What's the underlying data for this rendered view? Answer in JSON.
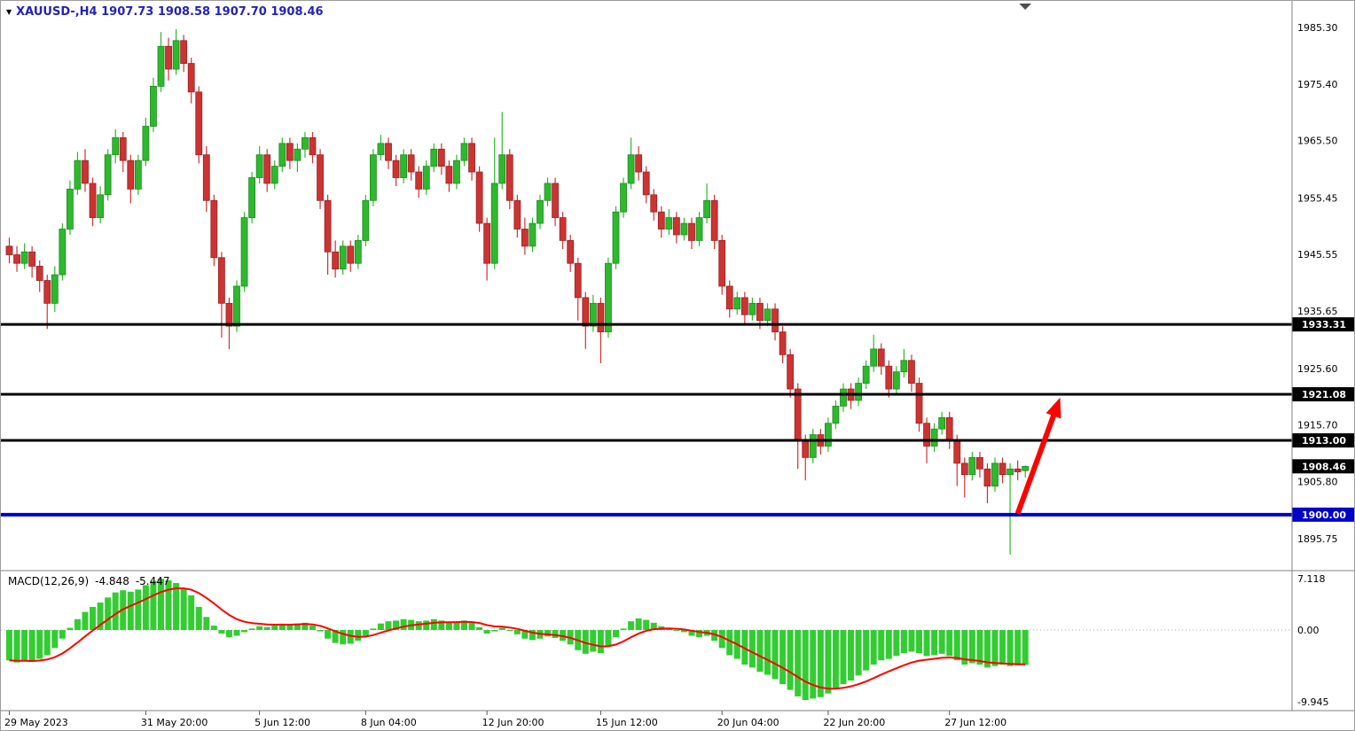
{
  "header": {
    "title": "XAUUSD-,H4 1907.73 1908.58 1907.70 1908.46",
    "symbol": "XAUUSD-",
    "timeframe": "H4",
    "ohlc": {
      "open": "1907.73",
      "high": "1908.58",
      "low": "1907.70",
      "close": "1908.46"
    }
  },
  "macd_header": {
    "label": "MACD(12,26,9)",
    "macd_value": "-4.848",
    "signal_value": "-5.447"
  },
  "colors": {
    "title_text": "#2222bb",
    "candle_up": "#2eb82e",
    "candle_up_border": "#1e8a1e",
    "candle_down": "#cc3333",
    "candle_down_border": "#992222",
    "sr_line_black": "#000000",
    "sr_line_blue": "#0000c8",
    "arrow_red": "#ff0000",
    "macd_hist": "#33cc33",
    "macd_signal": "#ff0000",
    "axis_text": "#000000",
    "separator": "#808080",
    "tag_text": "#ffffff"
  },
  "chart_data": [
    {
      "type": "candlestick",
      "title": "XAUUSD H4",
      "ylim": [
        1890.2,
        1989.95
      ],
      "y_ticks": [
        1985.3,
        1975.4,
        1965.5,
        1955.45,
        1945.55,
        1935.65,
        1925.6,
        1915.7,
        1905.8,
        1895.75
      ],
      "x_ticks": [
        {
          "index": 0,
          "label": "29 May 2023"
        },
        {
          "index": 18,
          "label": "31 May 20:00"
        },
        {
          "index": 33,
          "label": "5 Jun 12:00"
        },
        {
          "index": 47,
          "label": "8 Jun 04:00"
        },
        {
          "index": 63,
          "label": "12 Jun 20:00"
        },
        {
          "index": 78,
          "label": "15 Jun 12:00"
        },
        {
          "index": 94,
          "label": "20 Jun 04:00"
        },
        {
          "index": 108,
          "label": "22 Jun 20:00"
        },
        {
          "index": 124,
          "label": "27 Jun 12:00"
        }
      ],
      "price_lines": [
        {
          "value": 1933.31,
          "label": "1933.31",
          "color": "#000000",
          "width": 3
        },
        {
          "value": 1921.08,
          "label": "1921.08",
          "color": "#000000",
          "width": 3
        },
        {
          "value": 1913.0,
          "label": "1913.00",
          "color": "#000000",
          "width": 3
        },
        {
          "value": 1900.0,
          "label": "1900.00",
          "color": "#0000c8",
          "width": 4
        }
      ],
      "current_price": {
        "value": 1908.46,
        "label": "1908.46",
        "tag_color": "#000000"
      },
      "arrow": {
        "from": {
          "index": 133,
          "price": 1900.2
        },
        "to": {
          "index": 138.6,
          "price": 1920.5
        },
        "color": "#ff0000"
      },
      "candles": [
        [
          1947,
          1948.5,
          1944,
          1945.5
        ],
        [
          1945.5,
          1947,
          1942.5,
          1944
        ],
        [
          1944,
          1947.5,
          1943,
          1946
        ],
        [
          1946,
          1947,
          1941.5,
          1943.5
        ],
        [
          1943.5,
          1944.5,
          1939,
          1941
        ],
        [
          1941,
          1942,
          1932.5,
          1937
        ],
        [
          1937,
          1943.5,
          1935.5,
          1942
        ],
        [
          1942,
          1951,
          1941,
          1950
        ],
        [
          1950,
          1958.5,
          1949,
          1957
        ],
        [
          1957,
          1963.5,
          1956,
          1962
        ],
        [
          1962,
          1964,
          1956.5,
          1958
        ],
        [
          1958,
          1959,
          1950.5,
          1952
        ],
        [
          1952,
          1957.5,
          1951,
          1956
        ],
        [
          1956,
          1964,
          1955,
          1963
        ],
        [
          1963,
          1967.5,
          1961.5,
          1966
        ],
        [
          1966,
          1967,
          1960,
          1962
        ],
        [
          1962,
          1963,
          1954.5,
          1957
        ],
        [
          1957,
          1963,
          1956,
          1962
        ],
        [
          1962,
          1969.5,
          1961,
          1968
        ],
        [
          1968,
          1976.5,
          1967,
          1975
        ],
        [
          1975,
          1984.5,
          1974,
          1982
        ],
        [
          1982,
          1983.5,
          1976,
          1978
        ],
        [
          1978,
          1985,
          1977,
          1983
        ],
        [
          1983,
          1984,
          1977.5,
          1979
        ],
        [
          1979,
          1980,
          1972,
          1974
        ],
        [
          1974,
          1975,
          1961.5,
          1963
        ],
        [
          1963,
          1964.5,
          1953,
          1955
        ],
        [
          1955,
          1956,
          1943.5,
          1945
        ],
        [
          1945,
          1946,
          1931,
          1937
        ],
        [
          1937,
          1938,
          1929,
          1933
        ],
        [
          1933,
          1941,
          1932,
          1940
        ],
        [
          1940,
          1953,
          1939,
          1952
        ],
        [
          1952,
          1960,
          1951,
          1959
        ],
        [
          1959,
          1964.5,
          1958,
          1963
        ],
        [
          1963,
          1964,
          1956.5,
          1958
        ],
        [
          1958,
          1962,
          1957,
          1961
        ],
        [
          1961,
          1966,
          1960,
          1965
        ],
        [
          1965,
          1966,
          1960.5,
          1962
        ],
        [
          1962,
          1965,
          1960,
          1964
        ],
        [
          1964,
          1967,
          1962.5,
          1966
        ],
        [
          1966,
          1967,
          1961.5,
          1963
        ],
        [
          1963,
          1964,
          1953.5,
          1955
        ],
        [
          1955,
          1956,
          1942,
          1946
        ],
        [
          1946,
          1948,
          1941.5,
          1943
        ],
        [
          1943,
          1948,
          1942,
          1947
        ],
        [
          1947,
          1948,
          1942.5,
          1944
        ],
        [
          1944,
          1949,
          1943,
          1948
        ],
        [
          1948,
          1956,
          1947,
          1955
        ],
        [
          1955,
          1964,
          1954,
          1963
        ],
        [
          1963,
          1966.5,
          1962,
          1965
        ],
        [
          1965,
          1966,
          1960.5,
          1962
        ],
        [
          1962,
          1963,
          1957.5,
          1959
        ],
        [
          1959,
          1964,
          1958,
          1963
        ],
        [
          1963,
          1964,
          1958.5,
          1960
        ],
        [
          1960,
          1961,
          1955.5,
          1957
        ],
        [
          1957,
          1962,
          1956,
          1961
        ],
        [
          1961,
          1965,
          1960,
          1964
        ],
        [
          1964,
          1965,
          1959.5,
          1961
        ],
        [
          1961,
          1962,
          1956.5,
          1958
        ],
        [
          1958,
          1963,
          1957,
          1962
        ],
        [
          1962,
          1966,
          1961,
          1965
        ],
        [
          1965,
          1966,
          1958.5,
          1960
        ],
        [
          1960,
          1961,
          1949.5,
          1951
        ],
        [
          1951,
          1952,
          1941,
          1944
        ],
        [
          1944,
          1966,
          1943,
          1958
        ],
        [
          1958,
          1970.5,
          1957,
          1963
        ],
        [
          1963,
          1964,
          1953.5,
          1955
        ],
        [
          1955,
          1956,
          1948.5,
          1950
        ],
        [
          1950,
          1952,
          1945.5,
          1947
        ],
        [
          1947,
          1952,
          1946,
          1951
        ],
        [
          1951,
          1956,
          1950,
          1955
        ],
        [
          1955,
          1959,
          1954,
          1958
        ],
        [
          1958,
          1959,
          1950.5,
          1952
        ],
        [
          1952,
          1953,
          1946.5,
          1948
        ],
        [
          1948,
          1949,
          1942.5,
          1944
        ],
        [
          1944,
          1945,
          1934,
          1938
        ],
        [
          1938,
          1939,
          1929,
          1933
        ],
        [
          1933,
          1938.5,
          1932,
          1937
        ],
        [
          1937,
          1938,
          1926.5,
          1932
        ],
        [
          1932,
          1945,
          1931,
          1944
        ],
        [
          1944,
          1954,
          1943,
          1953
        ],
        [
          1953,
          1959,
          1952,
          1958
        ],
        [
          1958,
          1966,
          1957,
          1963
        ],
        [
          1963,
          1964.5,
          1958.5,
          1960
        ],
        [
          1960,
          1961,
          1954.5,
          1956
        ],
        [
          1956,
          1957,
          1951.5,
          1953
        ],
        [
          1953,
          1954,
          1948.5,
          1950
        ],
        [
          1950,
          1953.5,
          1949,
          1952
        ],
        [
          1952,
          1953,
          1947.5,
          1949
        ],
        [
          1949,
          1952,
          1948,
          1951
        ],
        [
          1951,
          1952,
          1946.5,
          1948
        ],
        [
          1948,
          1953,
          1947,
          1952
        ],
        [
          1952,
          1958,
          1951,
          1955
        ],
        [
          1955,
          1956,
          1946.5,
          1948
        ],
        [
          1948,
          1949,
          1938.5,
          1940
        ],
        [
          1940,
          1941,
          1934.5,
          1936
        ],
        [
          1936,
          1939,
          1935,
          1938
        ],
        [
          1938,
          1939,
          1933.5,
          1935
        ],
        [
          1935,
          1938,
          1934,
          1937
        ],
        [
          1937,
          1938,
          1932.5,
          1934
        ],
        [
          1934,
          1937,
          1933,
          1936
        ],
        [
          1936,
          1937,
          1930.5,
          1932
        ],
        [
          1932,
          1933,
          1926.5,
          1928
        ],
        [
          1928,
          1929,
          1920.5,
          1922
        ],
        [
          1922,
          1923,
          1908,
          1913
        ],
        [
          1913,
          1914,
          1906,
          1910
        ],
        [
          1910,
          1915,
          1909,
          1914
        ],
        [
          1914,
          1915,
          1910.5,
          1912
        ],
        [
          1912,
          1917,
          1911,
          1916
        ],
        [
          1916,
          1920,
          1915,
          1919
        ],
        [
          1919,
          1923,
          1918,
          1922
        ],
        [
          1922,
          1923,
          1918.5,
          1920
        ],
        [
          1920,
          1924,
          1919,
          1923
        ],
        [
          1923,
          1927,
          1922,
          1926
        ],
        [
          1926,
          1931.5,
          1925,
          1929
        ],
        [
          1929,
          1930,
          1924.5,
          1926
        ],
        [
          1926,
          1927,
          1920.5,
          1922
        ],
        [
          1922,
          1926,
          1921,
          1925
        ],
        [
          1925,
          1929,
          1924,
          1927
        ],
        [
          1927,
          1928,
          1921.5,
          1923
        ],
        [
          1923,
          1924,
          1914.5,
          1916
        ],
        [
          1916,
          1917,
          1909,
          1912
        ],
        [
          1912,
          1916,
          1911,
          1915
        ],
        [
          1915,
          1918,
          1914,
          1917
        ],
        [
          1917,
          1918,
          1911.5,
          1913
        ],
        [
          1913,
          1914,
          1905,
          1909
        ],
        [
          1909,
          1910,
          1903,
          1907
        ],
        [
          1907,
          1911,
          1906,
          1910
        ],
        [
          1910,
          1911,
          1906.5,
          1908
        ],
        [
          1908,
          1909,
          1902,
          1905
        ],
        [
          1905,
          1910,
          1904,
          1909
        ],
        [
          1909,
          1910,
          1905.5,
          1907
        ],
        [
          1907,
          1909,
          1893,
          1908
        ],
        [
          1908,
          1909.5,
          1906,
          1907.5
        ],
        [
          1907.7,
          1908.6,
          1906.5,
          1908.46
        ]
      ]
    },
    {
      "type": "bar",
      "title": "MACD(12,26,9)",
      "ylim": [
        -11.17,
        7.975
      ],
      "y_ticks": [
        {
          "value": 7.118,
          "label": "7.118"
        },
        {
          "value": 0,
          "label": "0.00"
        },
        {
          "value": -9.945,
          "label": "-9.945"
        }
      ],
      "current_values": {
        "macd": -4.848,
        "signal": -5.447
      },
      "signal_period": 9,
      "histogram": [
        -4.2,
        -4.5,
        -4.3,
        -4.4,
        -4.0,
        -3.5,
        -2.5,
        -1.2,
        0.3,
        1.5,
        2.5,
        3.2,
        3.8,
        4.5,
        5.2,
        5.5,
        5.3,
        5.6,
        6.2,
        6.8,
        7.1,
        6.9,
        6.5,
        5.8,
        4.8,
        3.2,
        1.8,
        0.6,
        -0.5,
        -1.0,
        -0.8,
        -0.3,
        0.2,
        0.5,
        0.4,
        0.6,
        0.8,
        0.7,
        0.9,
        1.0,
        0.6,
        -0.2,
        -1.2,
        -1.8,
        -2.0,
        -1.9,
        -1.5,
        -0.8,
        0.2,
        0.9,
        1.2,
        1.3,
        1.5,
        1.4,
        1.2,
        1.3,
        1.5,
        1.3,
        1.1,
        1.2,
        1.3,
        1.0,
        0.4,
        -0.5,
        -0.2,
        0.3,
        -0.1,
        -0.6,
        -1.2,
        -1.4,
        -1.2,
        -0.9,
        -1.1,
        -1.5,
        -2.0,
        -2.8,
        -3.3,
        -3.0,
        -3.2,
        -2.2,
        -1.0,
        0.2,
        1.2,
        1.6,
        1.4,
        1.0,
        0.5,
        0.3,
        0.0,
        -0.3,
        -0.8,
        -1.0,
        -0.8,
        -1.5,
        -2.5,
        -3.5,
        -4.0,
        -4.8,
        -5.2,
        -5.8,
        -6.2,
        -6.8,
        -7.5,
        -8.3,
        -9.2,
        -9.7,
        -9.5,
        -9.3,
        -8.8,
        -8.2,
        -7.5,
        -7.0,
        -6.3,
        -5.6,
        -4.8,
        -4.2,
        -4.0,
        -3.6,
        -3.2,
        -3.0,
        -3.2,
        -3.6,
        -3.5,
        -3.3,
        -3.6,
        -4.2,
        -4.8,
        -4.6,
        -4.8,
        -5.2,
        -5.0,
        -4.8,
        -5.0,
        -4.9,
        -4.848
      ]
    }
  ]
}
